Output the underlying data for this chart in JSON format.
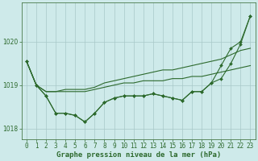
{
  "xlabel": "Graphe pression niveau de la mer (hPa)",
  "x": [
    0,
    1,
    2,
    3,
    4,
    5,
    6,
    7,
    8,
    9,
    10,
    11,
    12,
    13,
    14,
    15,
    16,
    17,
    18,
    19,
    20,
    21,
    22,
    23
  ],
  "line1": [
    1019.55,
    1019.0,
    1018.85,
    1018.85,
    1018.85,
    1018.85,
    1018.85,
    1018.9,
    1018.95,
    1019.0,
    1019.05,
    1019.05,
    1019.1,
    1019.1,
    1019.1,
    1019.15,
    1019.15,
    1019.2,
    1019.2,
    1019.25,
    1019.3,
    1019.35,
    1019.4,
    1019.45
  ],
  "line2": [
    1019.55,
    1019.0,
    1018.85,
    1018.85,
    1018.9,
    1018.9,
    1018.9,
    1018.95,
    1019.05,
    1019.1,
    1019.15,
    1019.2,
    1019.25,
    1019.3,
    1019.35,
    1019.35,
    1019.4,
    1019.45,
    1019.5,
    1019.55,
    1019.6,
    1019.7,
    1019.8,
    1019.85
  ],
  "line3_x": [
    0,
    1,
    2,
    3,
    4,
    5,
    6,
    7,
    8,
    9,
    10,
    11,
    12,
    13,
    14,
    15,
    16,
    17,
    18,
    19,
    20,
    21,
    22,
    23
  ],
  "line3": [
    1019.55,
    1019.0,
    1018.75,
    1018.35,
    1018.35,
    1018.3,
    1018.15,
    1018.35,
    1018.6,
    1018.7,
    1018.75,
    1018.75,
    1018.75,
    1018.8,
    1018.75,
    1018.7,
    1018.65,
    1018.85,
    1018.85,
    1019.05,
    1019.15,
    1019.5,
    1019.95,
    1020.6
  ],
  "line4_x": [
    0,
    1,
    2,
    3,
    4,
    5,
    6,
    7,
    8,
    9,
    10,
    11,
    12,
    13,
    14,
    15,
    16,
    17,
    18,
    19,
    20,
    21,
    22,
    23
  ],
  "line4": [
    1019.55,
    1019.0,
    1018.75,
    1018.35,
    1018.35,
    1018.3,
    1018.15,
    1018.35,
    1018.6,
    1018.7,
    1018.75,
    1018.75,
    1018.75,
    1018.8,
    1018.75,
    1018.7,
    1018.65,
    1018.85,
    1018.85,
    1019.05,
    1019.45,
    1019.85,
    1020.0,
    1020.6
  ],
  "line_color": "#2d6a2d",
  "bg_color": "#ceeaea",
  "grid_color": "#a8c8c8",
  "ylim": [
    1017.75,
    1020.9
  ],
  "yticks": [
    1018,
    1019,
    1020
  ],
  "xticks": [
    0,
    1,
    2,
    3,
    4,
    5,
    6,
    7,
    8,
    9,
    10,
    11,
    12,
    13,
    14,
    15,
    16,
    17,
    18,
    19,
    20,
    21,
    22,
    23
  ],
  "tick_fontsize": 5.5,
  "label_fontsize": 6.5,
  "marker_size": 2.0
}
